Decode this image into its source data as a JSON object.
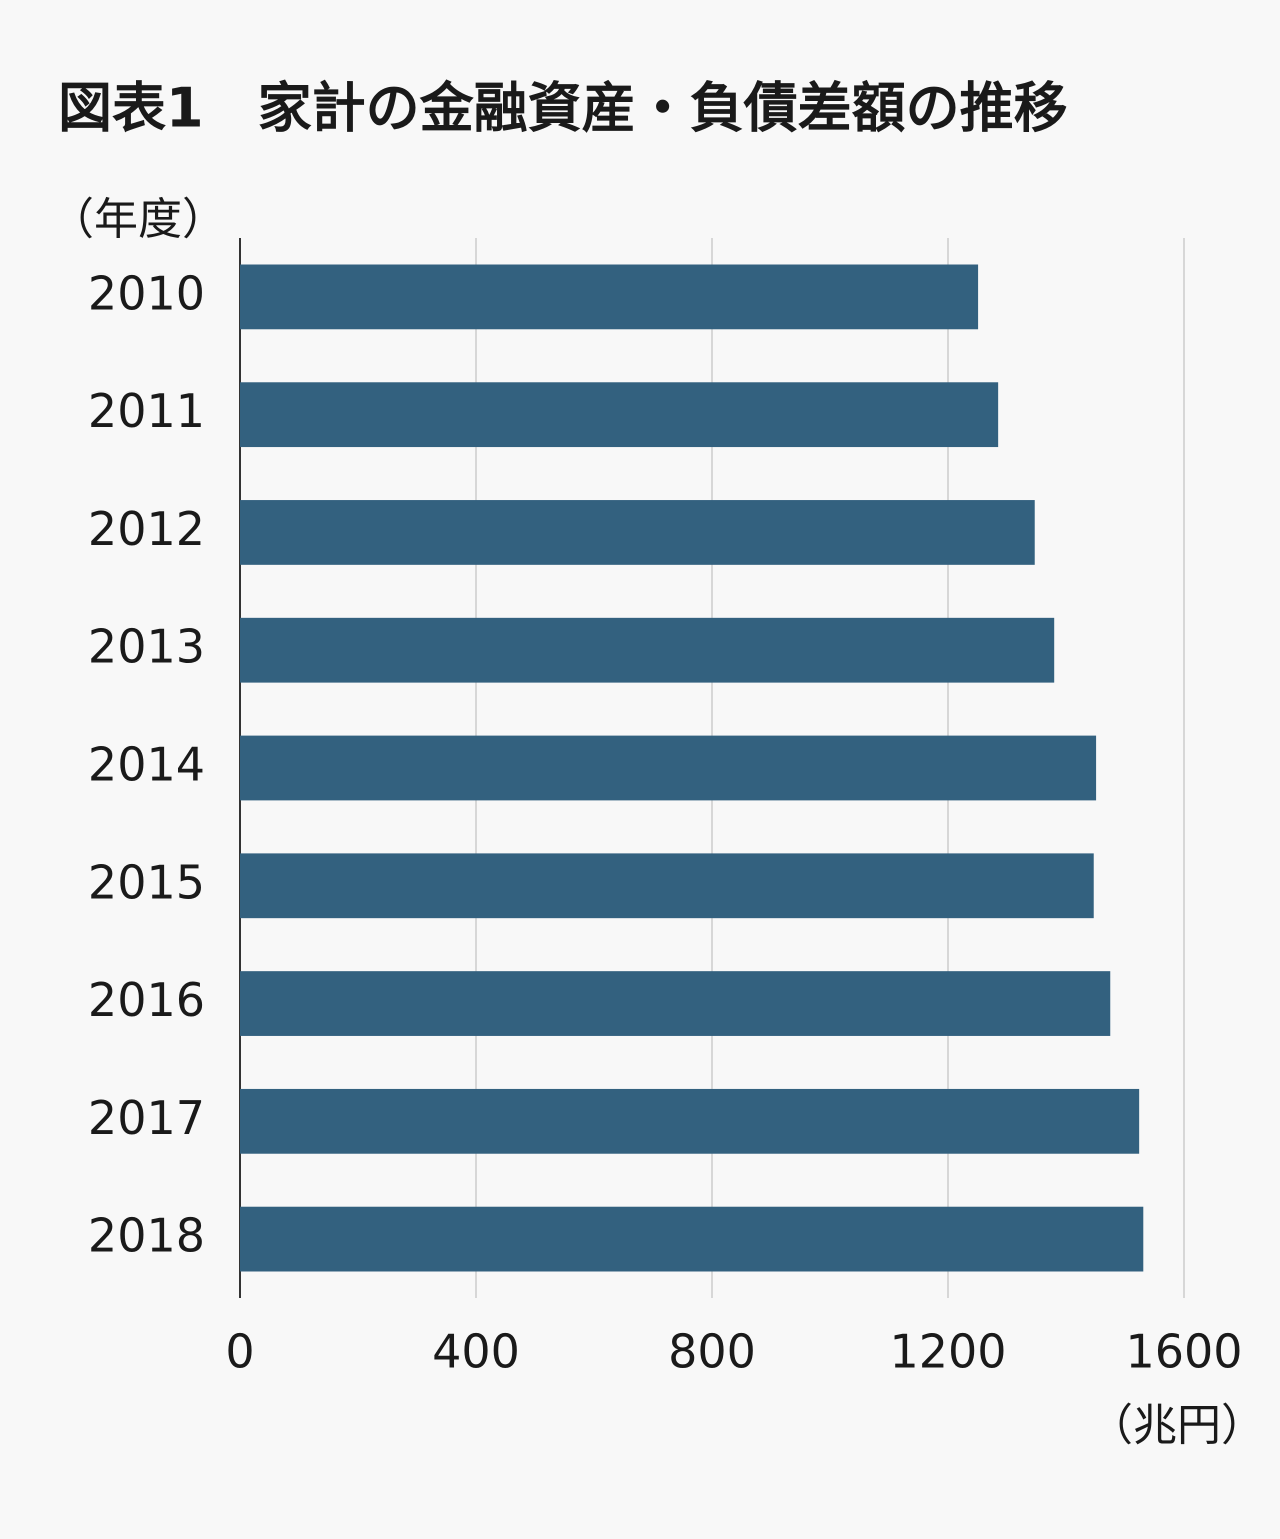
{
  "chart_data": {
    "type": "barh",
    "title": "図表1　家計の金融資産・負債差額の推移",
    "y_axis_label": "（年度）",
    "x_axis_label": "（兆円）",
    "categories": [
      "2010",
      "2011",
      "2012",
      "2013",
      "2014",
      "2015",
      "2016",
      "2017",
      "2018"
    ],
    "values": [
      1251,
      1285,
      1347,
      1380,
      1451,
      1447,
      1475,
      1524,
      1531
    ],
    "color": "#33617f",
    "xlim": [
      0,
      1600
    ],
    "xticks": [
      0,
      400,
      800,
      1200,
      1600
    ],
    "grid": true
  }
}
